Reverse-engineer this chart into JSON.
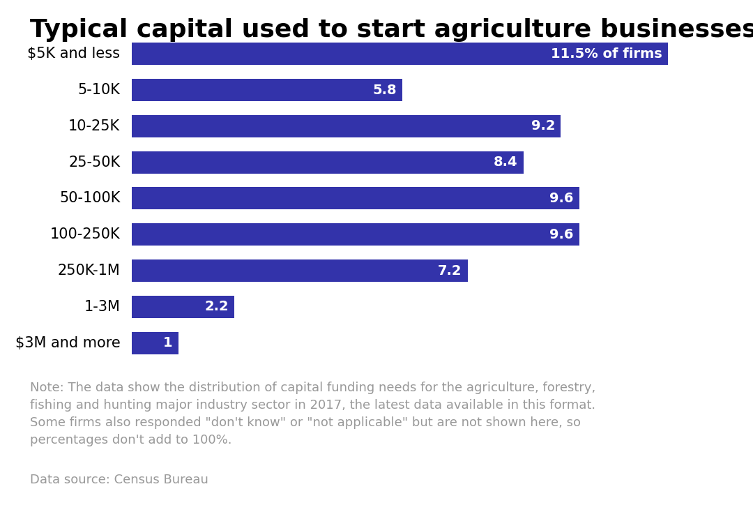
{
  "title": "Typical capital used to start agriculture businesses",
  "categories": [
    "$5K and less",
    "5-10K",
    "10-25K",
    "25-50K",
    "50-100K",
    "100-250K",
    "250K-1M",
    "1-3M",
    "$3M and more"
  ],
  "values": [
    11.5,
    5.8,
    9.2,
    8.4,
    9.6,
    9.6,
    7.2,
    2.2,
    1.0
  ],
  "labels": [
    "11.5% of firms",
    "5.8",
    "9.2",
    "8.4",
    "9.6",
    "9.6",
    "7.2",
    "2.2",
    "1"
  ],
  "bar_color": "#3333aa",
  "text_color": "#ffffff",
  "title_color": "#000000",
  "background_color": "#ffffff",
  "note_text": "Note: The data show the distribution of capital funding needs for the agriculture, forestry,\nfishing and hunting major industry sector in 2017, the latest data available in this format.\nSome firms also responded \"don't know\" or \"not applicable\" but are not shown here, so\npercentages don't add to 100%.",
  "source_text": "Data source: Census Bureau",
  "note_color": "#999999",
  "source_color": "#999999",
  "xlim": [
    0,
    13.0
  ],
  "title_fontsize": 26,
  "label_fontsize": 14,
  "category_fontsize": 15,
  "note_fontsize": 13,
  "source_fontsize": 13,
  "bar_height": 0.62
}
